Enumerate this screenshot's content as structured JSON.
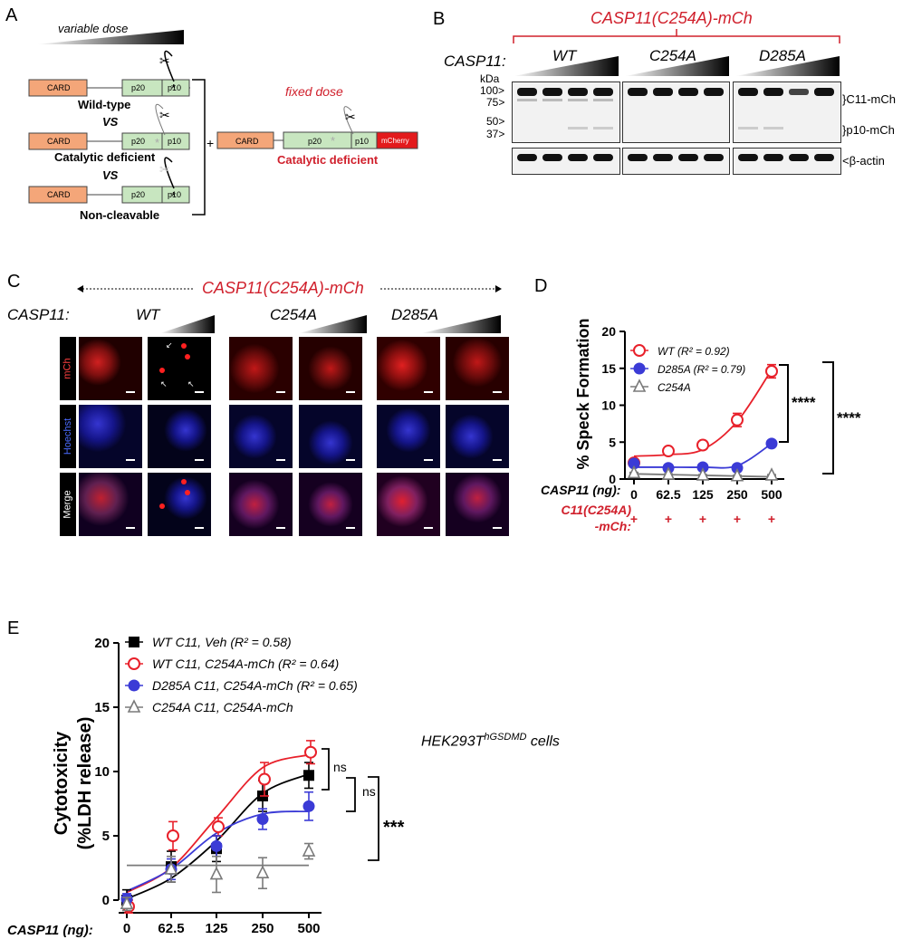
{
  "panel_a": {
    "letter": "A",
    "variable_dose": "variable dose",
    "constructs": [
      {
        "card": "CARD",
        "p20": "p20",
        "p10": "p10",
        "label": "Wild-type"
      },
      {
        "card": "CARD",
        "p20": "p20",
        "p10": "p10",
        "label": "Catalytic deficient"
      },
      {
        "card": "CARD",
        "p20": "p20",
        "p10": "p10",
        "label": "Non-cleavable"
      }
    ],
    "vs": "VS",
    "plus": "+",
    "fixed_dose": "fixed dose",
    "fixed_construct": {
      "card": "CARD",
      "p20": "p20",
      "p10": "p10",
      "mcherry": "mCherry",
      "label": "Catalytic deficient"
    },
    "colors": {
      "card": "#f4a679",
      "domain": "#c8e6c0",
      "mcherry": "#e31a1c",
      "red": "#d0202c"
    }
  },
  "panel_b": {
    "letter": "B",
    "title": "CASP11(C254A)-mCh",
    "casp11_label": "CASP11:",
    "groups": [
      "WT",
      "C254A",
      "D285A"
    ],
    "kda": "kDa",
    "markers": [
      "100>",
      "75>",
      "50>",
      "37>"
    ],
    "bands": [
      "C11-mCh",
      "p10-mCh",
      "β-actin"
    ]
  },
  "panel_c": {
    "letter": "C",
    "title": "CASP11(C254A)-mCh",
    "casp11_label": "CASP11:",
    "groups": [
      "WT",
      "C254A",
      "D285A"
    ],
    "row_labels": [
      "mCh",
      "Hoechst",
      "Merge"
    ]
  },
  "panel_d": {
    "letter": "D",
    "ylabel": "% Speck Formation",
    "x_row_label": "CASP11 (ng):",
    "x_ticks": [
      "0",
      "62.5",
      "125",
      "250",
      "500"
    ],
    "y_ticks": [
      "0",
      "5",
      "10",
      "15",
      "20"
    ],
    "mch_label_1": "C11(C254A)",
    "mch_label_2": "-mCh:",
    "plus_row": [
      "+",
      "+",
      "+",
      "+",
      "+"
    ],
    "legend": [
      "WT (R² = 0.92)",
      "D285A (R² = 0.79)",
      "C254A"
    ],
    "sig": [
      "****",
      "****"
    ]
  },
  "panel_e": {
    "letter": "E",
    "ylabel_1": "Cytotoxicity",
    "ylabel_2": "(%LDH release)",
    "x_row_label": "CASP11 (ng):",
    "x_ticks": [
      "0",
      "62.5",
      "125",
      "250",
      "500"
    ],
    "y_ticks": [
      "0",
      "5",
      "10",
      "15",
      "20"
    ],
    "legend": [
      "WT C11, Veh (R² = 0.58)",
      "WT C11, C254A-mCh (R² = 0.64)",
      "D285A C11, C254A-mCh (R² = 0.65)",
      "C254A C11, C254A-mCh"
    ],
    "cell_line": "HEK293T",
    "cell_sup": "hGSDMD",
    "cell_suffix": " cells",
    "sig": [
      "ns",
      "ns",
      "***"
    ]
  },
  "chart_data": [
    {
      "type": "scatter",
      "ylabel": "% Speck Formation",
      "xlabel": "CASP11 (ng):",
      "categories": [
        "0",
        "62.5",
        "125",
        "250",
        "500"
      ],
      "ylim": [
        0,
        20
      ],
      "series": [
        {
          "name": "WT (R² = 0.92)",
          "color": "#e8202a",
          "marker": "open-circle",
          "values": [
            2.2,
            3.8,
            4.6,
            8.0,
            14.6
          ],
          "errors": [
            0.3,
            0.3,
            0.3,
            0.9,
            0.9
          ]
        },
        {
          "name": "D285A (R² = 0.79)",
          "color": "#3b3bd6",
          "marker": "filled-circle",
          "values": [
            2.1,
            1.5,
            1.6,
            1.5,
            4.8
          ],
          "errors": [
            0.2,
            0.2,
            0.2,
            0.2,
            0.2
          ]
        },
        {
          "name": "C254A",
          "color": "#7a7a7a",
          "marker": "open-triangle",
          "values": [
            0.8,
            0.6,
            0.5,
            0.4,
            0.5
          ],
          "errors": [
            0.1,
            0.1,
            0.1,
            0.1,
            0.1
          ]
        }
      ],
      "fits": [
        {
          "series": 0,
          "values": [
            3.1,
            3.3,
            4.0,
            7.8,
            14.8
          ]
        },
        {
          "series": 1,
          "values": [
            1.6,
            1.6,
            1.6,
            1.8,
            4.8
          ]
        },
        {
          "series": 2,
          "values": [
            0.7,
            0.6,
            0.5,
            0.4,
            0.3
          ]
        }
      ]
    },
    {
      "type": "scatter",
      "ylabel": "Cytotoxicity (%LDH release)",
      "xlabel": "CASP11 (ng):",
      "categories": [
        "0",
        "62.5",
        "125",
        "250",
        "500"
      ],
      "ylim": [
        0,
        20
      ],
      "series": [
        {
          "name": "WT C11, Veh (R² = 0.58)",
          "color": "#000000",
          "marker": "filled-square",
          "values": [
            0.0,
            2.6,
            4.0,
            8.1,
            9.7
          ],
          "errors": [
            0.8,
            1.2,
            1.0,
            1.2,
            1.0
          ]
        },
        {
          "name": "WT C11, C254A-mCh (R² = 0.64)",
          "color": "#e8202a",
          "marker": "open-circle",
          "values": [
            -0.5,
            5.0,
            5.7,
            9.4,
            11.5
          ],
          "errors": [
            0.5,
            1.1,
            0.7,
            1.3,
            0.9
          ]
        },
        {
          "name": "D285A C11, C254A-mCh (R² = 0.65)",
          "color": "#3b3bd6",
          "marker": "filled-circle",
          "values": [
            0.1,
            2.4,
            4.2,
            6.3,
            7.3
          ],
          "errors": [
            0.4,
            0.8,
            0.8,
            0.8,
            1.1
          ]
        },
        {
          "name": "C254A C11, C254A-mCh",
          "color": "#7a7a7a",
          "marker": "open-triangle",
          "values": [
            -0.3,
            2.4,
            2.0,
            2.1,
            3.8
          ],
          "errors": [
            0.5,
            1.0,
            1.4,
            1.2,
            0.6
          ]
        }
      ],
      "fits": [
        {
          "series": 0,
          "values": [
            0.1,
            1.7,
            4.6,
            8.3,
            9.8
          ]
        },
        {
          "series": 1,
          "values": [
            0.6,
            2.5,
            6.4,
            10.3,
            11.3
          ]
        },
        {
          "series": 2,
          "values": [
            0.7,
            2.4,
            5.2,
            6.7,
            6.9
          ]
        },
        {
          "series": 3,
          "values": [
            2.7,
            2.7,
            2.7,
            2.7,
            2.7
          ]
        }
      ]
    }
  ]
}
